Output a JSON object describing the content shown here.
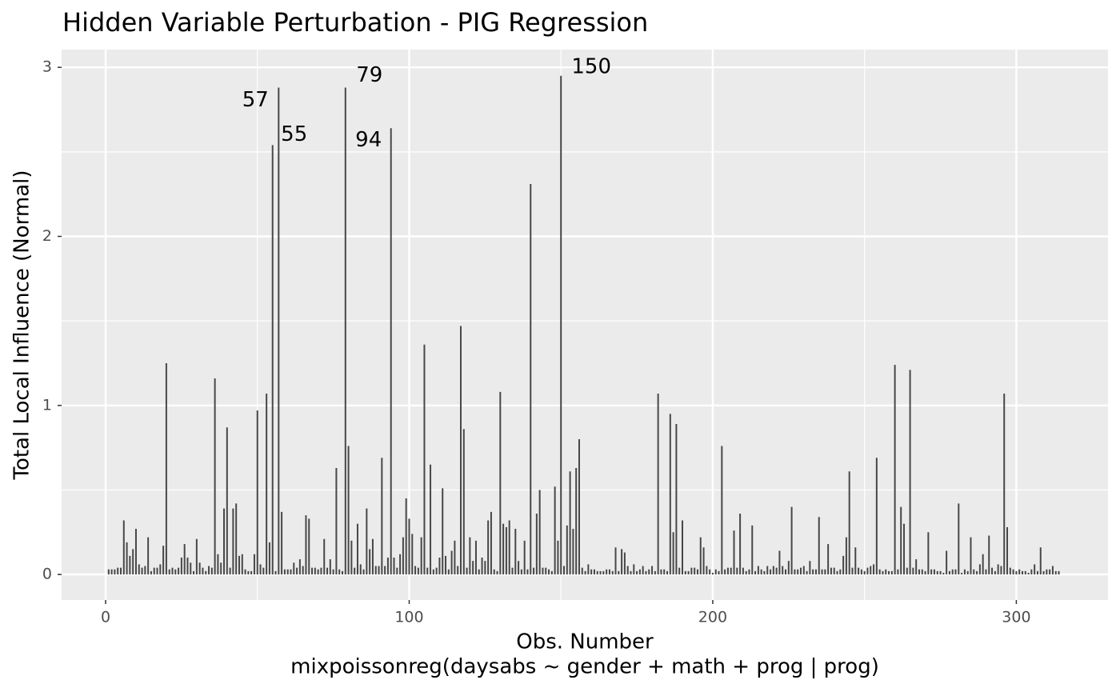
{
  "chart_data": {
    "type": "needle",
    "title": "Hidden Variable Perturbation - PIG Regression",
    "xlabel": "Obs. Number",
    "caption": "mixpoissonreg(daysabs ~ gender + math + prog | prog)",
    "ylabel": "Total Local Influence (Normal)",
    "color": "#474747",
    "xlim": [
      -14.5,
      330.2
    ],
    "ylim": [
      -0.151,
      3.105
    ],
    "xticks": [
      0,
      100,
      200,
      300
    ],
    "yticks": [
      0,
      1,
      2,
      3
    ],
    "xminor": [
      50,
      150,
      250
    ],
    "yminor": [
      0.5,
      1.5,
      2.5
    ],
    "grid": true,
    "labeled": [
      57,
      79,
      55,
      94,
      150
    ],
    "x": [
      1,
      2,
      3,
      4,
      5,
      6,
      7,
      8,
      9,
      10,
      11,
      12,
      13,
      14,
      15,
      16,
      17,
      18,
      19,
      20,
      21,
      22,
      23,
      24,
      25,
      26,
      27,
      28,
      29,
      30,
      31,
      32,
      33,
      34,
      35,
      36,
      37,
      38,
      39,
      40,
      41,
      42,
      43,
      44,
      45,
      46,
      47,
      48,
      49,
      50,
      51,
      52,
      53,
      54,
      55,
      56,
      57,
      58,
      59,
      60,
      61,
      62,
      63,
      64,
      65,
      66,
      67,
      68,
      69,
      70,
      71,
      72,
      73,
      74,
      75,
      76,
      77,
      78,
      79,
      80,
      81,
      82,
      83,
      84,
      85,
      86,
      87,
      88,
      89,
      90,
      91,
      92,
      93,
      94,
      95,
      96,
      97,
      98,
      99,
      100,
      101,
      102,
      103,
      104,
      105,
      106,
      107,
      108,
      109,
      110,
      111,
      112,
      113,
      114,
      115,
      116,
      117,
      118,
      119,
      120,
      121,
      122,
      123,
      124,
      125,
      126,
      127,
      128,
      129,
      130,
      131,
      132,
      133,
      134,
      135,
      136,
      137,
      138,
      139,
      140,
      141,
      142,
      143,
      144,
      145,
      146,
      147,
      148,
      149,
      150,
      151,
      152,
      153,
      154,
      155,
      156,
      157,
      158,
      159,
      160,
      161,
      162,
      163,
      164,
      165,
      166,
      167,
      168,
      169,
      170,
      171,
      172,
      173,
      174,
      175,
      176,
      177,
      178,
      179,
      180,
      181,
      182,
      183,
      184,
      185,
      186,
      187,
      188,
      189,
      190,
      191,
      192,
      193,
      194,
      195,
      196,
      197,
      198,
      199,
      200,
      201,
      202,
      203,
      204,
      205,
      206,
      207,
      208,
      209,
      210,
      211,
      212,
      213,
      214,
      215,
      216,
      217,
      218,
      219,
      220,
      221,
      222,
      223,
      224,
      225,
      226,
      227,
      228,
      229,
      230,
      231,
      232,
      233,
      234,
      235,
      236,
      237,
      238,
      239,
      240,
      241,
      242,
      243,
      244,
      245,
      246,
      247,
      248,
      249,
      250,
      251,
      252,
      253,
      254,
      255,
      256,
      257,
      258,
      259,
      260,
      261,
      262,
      263,
      264,
      265,
      266,
      267,
      268,
      269,
      270,
      271,
      272,
      273,
      274,
      275,
      276,
      277,
      278,
      279,
      280,
      281,
      282,
      283,
      284,
      285,
      286,
      287,
      288,
      289,
      290,
      291,
      292,
      293,
      294,
      295,
      296,
      297,
      298,
      299,
      300,
      301,
      302,
      303,
      304,
      305,
      306,
      307,
      308,
      309,
      310,
      311,
      312,
      313,
      314
    ],
    "values": [
      0.03,
      0.03,
      0.03,
      0.04,
      0.04,
      0.32,
      0.19,
      0.11,
      0.15,
      0.27,
      0.06,
      0.04,
      0.05,
      0.22,
      0.02,
      0.04,
      0.04,
      0.06,
      0.17,
      1.25,
      0.03,
      0.04,
      0.03,
      0.04,
      0.1,
      0.18,
      0.1,
      0.07,
      0.02,
      0.21,
      0.07,
      0.04,
      0.02,
      0.05,
      0.04,
      1.16,
      0.12,
      0.07,
      0.39,
      0.87,
      0.04,
      0.39,
      0.42,
      0.11,
      0.12,
      0.03,
      0.02,
      0.02,
      0.12,
      0.97,
      0.06,
      0.04,
      1.07,
      0.19,
      2.54,
      0.02,
      2.88,
      0.37,
      0.03,
      0.03,
      0.03,
      0.07,
      0.04,
      0.09,
      0.05,
      0.35,
      0.33,
      0.04,
      0.04,
      0.03,
      0.04,
      0.21,
      0.04,
      0.09,
      0.03,
      0.63,
      0.03,
      0.02,
      2.88,
      0.76,
      0.2,
      0.04,
      0.3,
      0.06,
      0.03,
      0.39,
      0.15,
      0.21,
      0.05,
      0.05,
      0.69,
      0.05,
      0.1,
      2.64,
      0.1,
      0.04,
      0.12,
      0.22,
      0.45,
      0.33,
      0.24,
      0.05,
      0.04,
      0.22,
      1.36,
      0.04,
      0.65,
      0.03,
      0.04,
      0.1,
      0.51,
      0.11,
      0.03,
      0.14,
      0.2,
      0.05,
      1.47,
      0.86,
      0.04,
      0.22,
      0.08,
      0.2,
      0.03,
      0.1,
      0.08,
      0.32,
      0.37,
      0.03,
      0.02,
      1.08,
      0.3,
      0.28,
      0.32,
      0.04,
      0.27,
      0.08,
      0.03,
      0.2,
      0.03,
      2.31,
      0.04,
      0.36,
      0.5,
      0.04,
      0.04,
      0.03,
      0.02,
      0.52,
      0.2,
      2.95,
      0.05,
      0.29,
      0.61,
      0.27,
      0.63,
      0.8,
      0.04,
      0.02,
      0.06,
      0.03,
      0.03,
      0.02,
      0.02,
      0.02,
      0.03,
      0.03,
      0.02,
      0.16,
      0.02,
      0.15,
      0.13,
      0.05,
      0.02,
      0.06,
      0.02,
      0.03,
      0.05,
      0.02,
      0.03,
      0.05,
      0.02,
      1.07,
      0.03,
      0.03,
      0.02,
      0.95,
      0.25,
      0.89,
      0.04,
      0.32,
      0.02,
      0.02,
      0.04,
      0.04,
      0.03,
      0.22,
      0.16,
      0.05,
      0.03,
      0.01,
      0.03,
      0.02,
      0.76,
      0.03,
      0.04,
      0.04,
      0.26,
      0.04,
      0.36,
      0.04,
      0.02,
      0.03,
      0.29,
      0.02,
      0.05,
      0.03,
      0.02,
      0.05,
      0.03,
      0.05,
      0.04,
      0.14,
      0.05,
      0.03,
      0.08,
      0.4,
      0.03,
      0.03,
      0.04,
      0.05,
      0.02,
      0.08,
      0.03,
      0.03,
      0.34,
      0.03,
      0.03,
      0.18,
      0.04,
      0.04,
      0.02,
      0.03,
      0.11,
      0.22,
      0.61,
      0.04,
      0.16,
      0.04,
      0.03,
      0.02,
      0.04,
      0.05,
      0.06,
      0.69,
      0.03,
      0.02,
      0.03,
      0.02,
      0.02,
      1.24,
      0.03,
      0.4,
      0.3,
      0.04,
      1.21,
      0.04,
      0.09,
      0.03,
      0.03,
      0.02,
      0.25,
      0.03,
      0.03,
      0.02,
      0.02,
      0.01,
      0.14,
      0.02,
      0.03,
      0.03,
      0.42,
      0.01,
      0.03,
      0.02,
      0.22,
      0.03,
      0.02,
      0.06,
      0.12,
      0.03,
      0.23,
      0.04,
      0.02,
      0.06,
      0.05,
      1.07,
      0.28,
      0.04,
      0.03,
      0.02,
      0.03,
      0.02,
      0.02,
      0.01,
      0.03,
      0.06,
      0.02,
      0.16,
      0.02,
      0.03,
      0.03,
      0.05,
      0.02,
      0.02
    ]
  }
}
